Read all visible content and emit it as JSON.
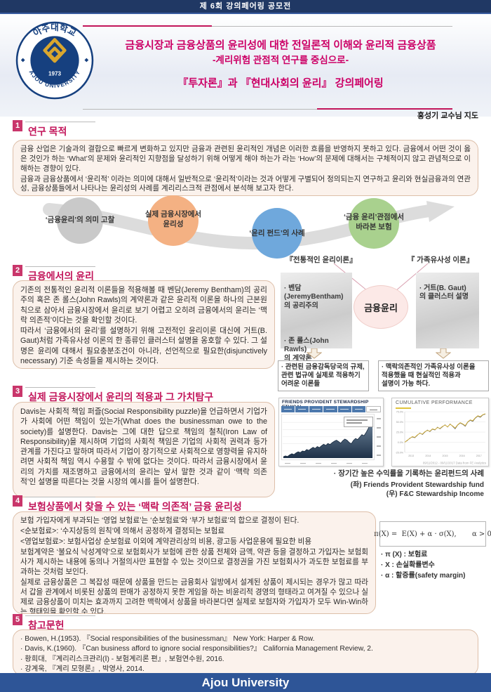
{
  "meta": {
    "competition": "제 6회 강의페어링 공모전",
    "advisor": "홍성기 교수님 지도",
    "footer": "Ajou University"
  },
  "logo": {
    "ring_top": "아주대학교",
    "ring_bottom": "AJOU UNIVERSITY",
    "year": "1973"
  },
  "header": {
    "title_line1": "금융시장과 금융상품의 윤리성에 대한 전일론적 이해와 윤리적 금융상품",
    "title_line2": "-계리위험 관점적 연구를 중심으로-",
    "title_line3": "『투자론』과 『현대사회의 윤리』 강의페어링"
  },
  "sections": {
    "s1": {
      "no": "1",
      "title": "연구 목적",
      "p1": " 금융 산업은 기술과의 결합으로 빠르게 변화하고 있지만 금융과 관련된 윤리적인 개념은 이러한 흐름을 반영하지 못하고 있다. 금융에서 어떤 것이 옳은 것인가 하는 ‘What’의 문제와 윤리적인 지향점을 달성하기 위해 어떻게 해야 하는가 라는 ‘How’의 문제에 대해서는 구체적이지 않고 관념적으로 이해하는 경향이 있다.",
      "p2": " 금융과 금융상품에서 ‘윤리적’ 이라는 의미에 대해서 일반적으로 ‘윤리적’이라는 것과 어떻게 구별되어 정의되는지 연구하고 윤리와 현실금융과의 연관성, 금융상품들에서 나타나는 윤리성의 사례를 계리리스크적 관점에서 분석해 보고자 한다."
    },
    "flow": {
      "c1": "‘금융윤리’의 의미 고찰",
      "c2": "실제 금융시장에서\n윤리성",
      "c3": "‘윤리 펀드’의 사례",
      "c4": "‘금융 윤리’관점에서\n바라본 보험"
    },
    "s2": {
      "no": "2",
      "title": "금융에서의 윤리",
      "p1": " 기존의 전통적인 윤리적 이론들을 적용해볼 때 벤담(Jeremy Bentham)의 공리주의 혹은 존 롤스(John Rawls)의 계약론과 같은 윤리적 이론을 하나의 근본원칙으로 삼아서 금융시장에서 윤리로 보기 어렵고 오히려 금융에서의 윤리는 ‘맥락 의존적’이다는 것을 확인할 것이다.",
      "p2": " 따라서 ‘금융에서의 윤리’를 설명하기 위해 고전적인 윤리이론 대신에 거트(B. Gaut)처럼 가족유사성 이론의 한 종류인 클러스터 설명을 옹호할 수 있다. 그 설명은 윤리에 대해서 필요충분조건이 아니라, 선언적으로 필요한(disjunctively necessary) 기준 속성들을 제시하는 것이다.",
      "diagram": {
        "header_left": "『전통적인 윤리이론』",
        "header_right": "『 가족유사성 이론』",
        "center": "금융윤리",
        "left_item1": "· 벤담(JeremyBentham)\n의 공리주의",
        "left_item2": "· 존 롤스(John Rawls)\n의 계약론",
        "right_item": "· 거트(B. Gaut)\n의 클러스터 설명",
        "left_note": "· 관련된 금융감독당국의 규제,\n관련 법규에 실제로 적용하기\n어려운 이론들",
        "right_note": "· 맥락의존적인 가족유사성 이론을\n적용했을 때 현실적인 적용과\n설명이 가능 하다."
      }
    },
    "s3": {
      "no": "3",
      "title": "실제 금융시장에서 윤리의 적용과 그 가치탐구",
      "p1": " Davis는 사회적 책임 퍼즐(Social Responsibility puzzle)을 언급하면서 기업가가 사회에 어떤 책임이 있는가(What does the businessman owe to the society)를 설명한다. Davis는 그에 대한 답으로 책임의 철칙(Iron Law of Responsibility)을 제시하며 기업의 사회적 책임은 기업의 사회적 권력과 등가 관계를 가진다고 말하며 따라서 기업이 장기적으로 사회적으로 영향력을 유지하려면 사회적 책임 역시 수용할 수 밖에 없다는 것이다. 따라서 금융시장에서 윤리의 가치를 재조명하고 금융에서의 윤리는 앞서 말한 것과 같이 ‘맥락 의존적’인 설명을 따른다는 것을 시장의 예시를 들어 설명한다.",
      "caption_line1": "· 장기간 높은 수익률을 기록하는 윤리펀드의 사례",
      "caption_line2": "(좌) Friends Provident Stewardship fund",
      "caption_line3": "(우) F&C Stewardship Income"
    },
    "s4": {
      "no": "4",
      "title": "보험상품에서 찾을 수 있는 ‘맥락 의존적’ 금융 윤리성",
      "lines": [
        " 보험 가입자에게 부과되는 ‘영업 보험료’는 ‘순보험료’와 ‘부가 보험료’의 합으로 결정이 된다.",
        "<순보험료>: ‘수지상등의 원칙’에 의해서 공정하게 결정되는 보험료",
        "<영업보험료>: 보험사업상 순보험료 이외에 계약관리상의 비용, 광고등 사업운용에 필요한 비용",
        " 보험계약은 ‘불요식 낙성계약’으로 보험회사가 보험에 관한 상품 전체와 금액, 약관 등을 결정하고 가입자는 보험회사가 제시하는 내용에 동의나 거절의사만 표현할 수 있는 것이므로 결정권을 가진 보험회사가 과도한 보험료를 부과하는 것처럼 보인다.",
        " 실제로 금융상품은 그 복잡성 때문에 상품을 만드는 금융회사 일방에서 설계된 상품이 제시되는 경우가 많고 따라서 갑을 관계에서 비롯된 상품의 판매가 공정하지 못한 게임을 하는 비윤리적 경영의 형태라고 여겨질 수 있으나 실제로 금융상품이 미치는 효과까지 고려한 맥락에서 상품을 바라본다면 실제로 보험자와 가입자가 모두 Win-Win하는 형태임을 확인할 수 있다."
      ],
      "formula": "π(X) =  E(X) + α · σ(X),       α > 0",
      "legend": [
        "· π (X) : 보험료",
        "· X : 손실확률변수",
        "· α : 할증률(safety margin)"
      ]
    },
    "s5": {
      "no": "5",
      "title": "참고문헌",
      "refs": [
        "· Bowen, H.(1953). 『Social responsibilities of the businessman』 New York: Harper & Row.",
        "· Davis, K.(1960). 『Can business afford to ignore social responsibilities?』 California Management Review, 2.",
        "· 황희대, 『계리리스크관리(Ⅰ) - 보험계리론 편』, 보험연수원, 2016.",
        "· 강계욱, 『계리 모형론』, 박영사, 2014."
      ]
    }
  },
  "chart_data": [
    {
      "type": "area",
      "title": "FRIENDS PROVIDENT STEWARDSHIP ETHICAL",
      "values": [
        100,
        103,
        101,
        107,
        111,
        108,
        114,
        118,
        115,
        121,
        119,
        126,
        123,
        129,
        134,
        130,
        137,
        133,
        140,
        145,
        141,
        148,
        144,
        151,
        156,
        160,
        155,
        149,
        158,
        164,
        160,
        152,
        147,
        159,
        166,
        162,
        171,
        180,
        176,
        188,
        202,
        220,
        238
      ],
      "ylim": [
        95,
        245
      ],
      "x_labels_visible": false,
      "note": "fund price index, long-term rising area chart with period tab bar (rightmost tab selected)"
    },
    {
      "type": "line",
      "title": "CUMULATIVE PERFORMANCE",
      "categories": [
        "2013",
        "2014",
        "2015",
        "2016",
        "2017"
      ],
      "yticks": [
        "75.0%",
        "50.0%",
        "25.0%",
        "0.0%",
        "-25.0%"
      ],
      "ylim": [
        -25,
        75
      ],
      "footnote": "09/11/2012 - 09/11/2017 Data from FE Analytics",
      "series": [
        {
          "name": "dark-line",
          "values": [
            0,
            4,
            10,
            13,
            11,
            17,
            23,
            19,
            25,
            30,
            26,
            32,
            30,
            37,
            33,
            38,
            43,
            37,
            45,
            39,
            33,
            42,
            47,
            44,
            39,
            49,
            54,
            51,
            59,
            64,
            61,
            67,
            69
          ]
        },
        {
          "name": "gold-line",
          "values": [
            0,
            5,
            9,
            14,
            12,
            18,
            22,
            20,
            26,
            29,
            27,
            33,
            31,
            36,
            34,
            39,
            42,
            38,
            44,
            40,
            35,
            43,
            48,
            45,
            41,
            50,
            55,
            53,
            60,
            65,
            63,
            68,
            70
          ]
        }
      ]
    }
  ],
  "colors": {
    "topbar": "#203864",
    "footer_bar": "#2e5597",
    "section_badge": "#c9366b",
    "section_title": "#c2155a",
    "header_title": "#cc0066",
    "box_bg": "#fbf2ec",
    "box_border": "#ddbfa9",
    "flow_gray": "#c9c9c9",
    "flow_orange": "#f4b183",
    "flow_blue": "#6fa8dc",
    "flow_green": "#a9d18e",
    "ethics_circle": "#fce9e7",
    "chart_navy": "#1e3148",
    "chart_gold": "#d4af37"
  }
}
